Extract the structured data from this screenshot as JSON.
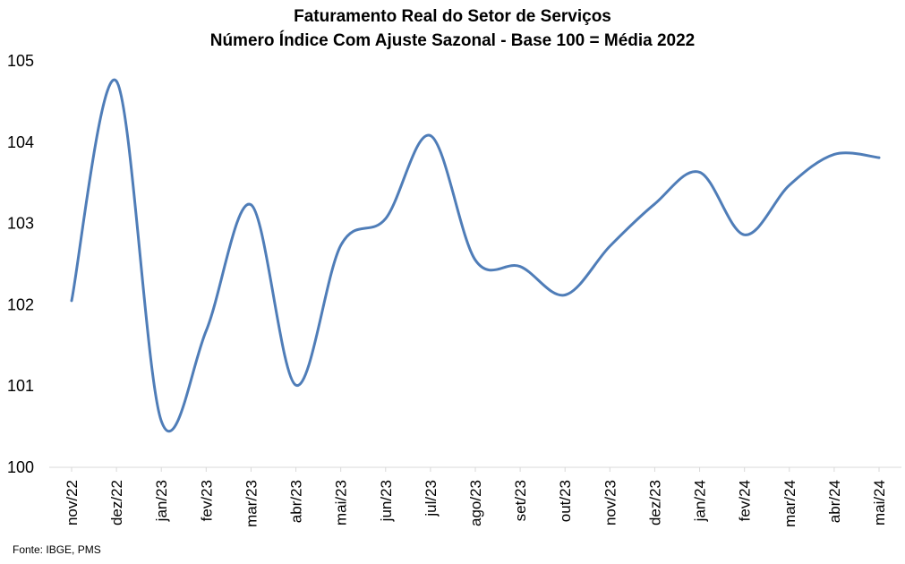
{
  "chart_data": {
    "type": "line",
    "title": "Faturamento Real do Setor de Serviços",
    "subtitle": "Número Índice Com Ajuste Sazonal - Base 100 = Média 2022",
    "categories": [
      "nov/22",
      "dez/22",
      "jan/23",
      "fev/23",
      "mar/23",
      "abr/23",
      "mai/23",
      "jun/23",
      "jul/23",
      "ago/23",
      "set/23",
      "out/23",
      "nov/23",
      "dez/23",
      "jan/24",
      "fev/24",
      "mar/24",
      "abr/24",
      "mai/24"
    ],
    "series": [
      {
        "values": [
          102.05,
          104.75,
          100.57,
          101.68,
          103.23,
          101.01,
          102.73,
          103.06,
          104.08,
          102.55,
          102.47,
          102.12,
          102.72,
          103.24,
          103.63,
          102.86,
          103.47,
          103.85,
          103.81
        ]
      }
    ],
    "ylim": [
      100,
      105
    ],
    "yticks": [
      "100",
      "101",
      "102",
      "103",
      "104",
      "105"
    ],
    "grid": false,
    "line_color": "#4F7DB8"
  },
  "source": "Fonte: IBGE, PMS"
}
